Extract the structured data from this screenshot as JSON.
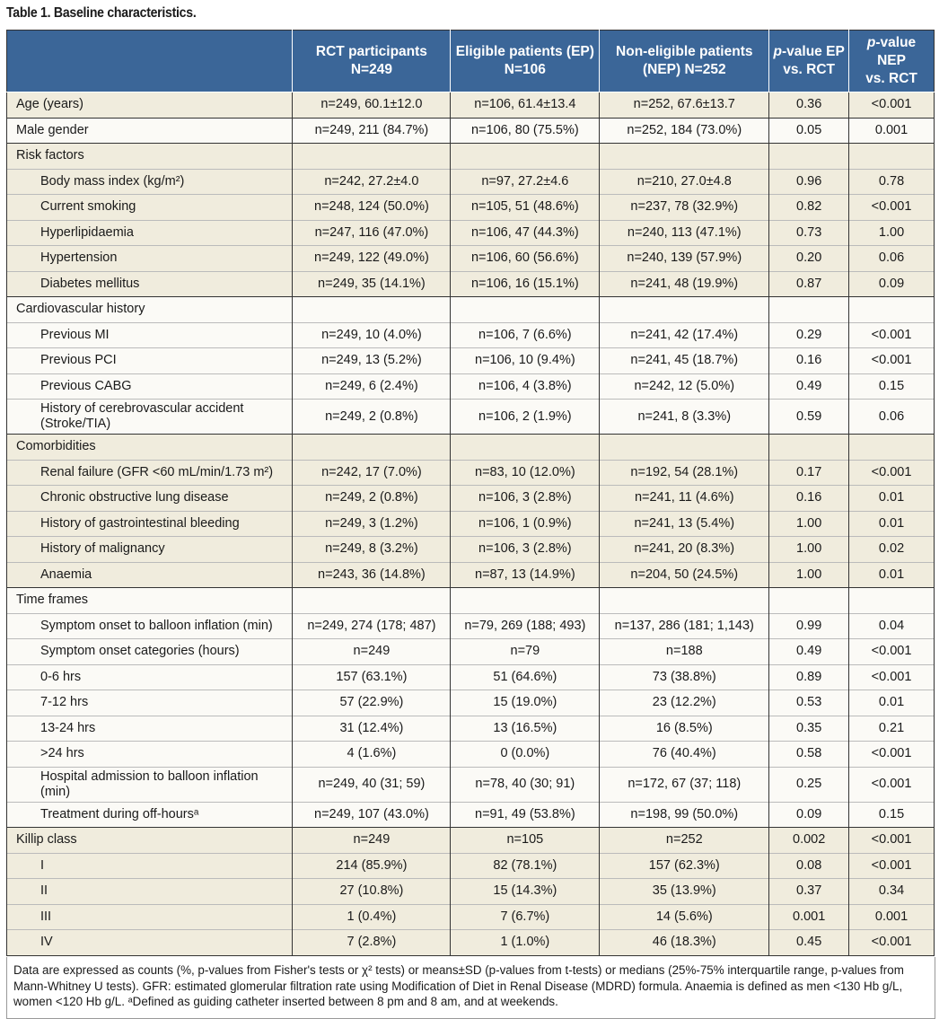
{
  "title": "Table 1. Baseline characteristics.",
  "headers": [
    {
      "l1": "RCT participants",
      "l2": "N=249"
    },
    {
      "l1": "Eligible patients (EP)",
      "l2": "N=106"
    },
    {
      "l1": "Non-eligible patients",
      "l2": "(NEP) N=252"
    },
    {
      "p": "p",
      "l1": "-value EP",
      "l2": "vs. RCT"
    },
    {
      "p": "p",
      "l1": "-value NEP",
      "l2": "vs. RCT"
    }
  ],
  "rows": [
    {
      "g": 0,
      "label": "Age (years)",
      "cells": [
        "n=249, 60.1±12.0",
        "n=106, 61.4±13.4",
        "n=252, 67.6±13.7",
        "0.36",
        "<0.001"
      ]
    },
    {
      "g": 1,
      "label": "Male gender",
      "cells": [
        "n=249, 211 (84.7%)",
        "n=106, 80 (75.5%)",
        "n=252, 184 (73.0%)",
        "0.05",
        "0.001"
      ]
    },
    {
      "g": 2,
      "label": "Risk factors",
      "cells": [
        "",
        "",
        "",
        "",
        ""
      ]
    },
    {
      "g": 2,
      "ind": true,
      "label": "Body mass index (kg/m²)",
      "cells": [
        "n=242, 27.2±4.0",
        "n=97, 27.2±4.6",
        "n=210, 27.0±4.8",
        "0.96",
        "0.78"
      ]
    },
    {
      "g": 2,
      "ind": true,
      "label": "Current smoking",
      "cells": [
        "n=248, 124 (50.0%)",
        "n=105, 51 (48.6%)",
        "n=237, 78 (32.9%)",
        "0.82",
        "<0.001"
      ]
    },
    {
      "g": 2,
      "ind": true,
      "label": "Hyperlipidaemia",
      "cells": [
        "n=247, 116 (47.0%)",
        "n=106, 47 (44.3%)",
        "n=240, 113 (47.1%)",
        "0.73",
        "1.00"
      ]
    },
    {
      "g": 2,
      "ind": true,
      "label": "Hypertension",
      "cells": [
        "n=249, 122 (49.0%)",
        "n=106, 60 (56.6%)",
        "n=240, 139 (57.9%)",
        "0.20",
        "0.06"
      ]
    },
    {
      "g": 2,
      "ind": true,
      "label": "Diabetes mellitus",
      "cells": [
        "n=249, 35 (14.1%)",
        "n=106, 16 (15.1%)",
        "n=241, 48 (19.9%)",
        "0.87",
        "0.09"
      ]
    },
    {
      "g": 3,
      "label": "Cardiovascular history",
      "cells": [
        "",
        "",
        "",
        "",
        ""
      ]
    },
    {
      "g": 3,
      "ind": true,
      "label": "Previous MI",
      "cells": [
        "n=249, 10 (4.0%)",
        "n=106, 7 (6.6%)",
        "n=241, 42 (17.4%)",
        "0.29",
        "<0.001"
      ]
    },
    {
      "g": 3,
      "ind": true,
      "label": "Previous PCI",
      "cells": [
        "n=249, 13 (5.2%)",
        "n=106, 10 (9.4%)",
        "n=241, 45 (18.7%)",
        "0.16",
        "<0.001"
      ]
    },
    {
      "g": 3,
      "ind": true,
      "label": "Previous CABG",
      "cells": [
        "n=249, 6 (2.4%)",
        "n=106, 4 (3.8%)",
        "n=242, 12 (5.0%)",
        "0.49",
        "0.15"
      ]
    },
    {
      "g": 3,
      "ind": true,
      "tall": true,
      "label": "History of cerebrovascular accident (Stroke/TIA)",
      "cells": [
        "n=249, 2 (0.8%)",
        "n=106, 2 (1.9%)",
        "n=241, 8 (3.3%)",
        "0.59",
        "0.06"
      ]
    },
    {
      "g": 4,
      "label": "Comorbidities",
      "cells": [
        "",
        "",
        "",
        "",
        ""
      ]
    },
    {
      "g": 4,
      "ind": true,
      "label": "Renal failure (GFR <60 mL/min/1.73 m²)",
      "cells": [
        "n=242, 17 (7.0%)",
        "n=83, 10 (12.0%)",
        "n=192, 54 (28.1%)",
        "0.17",
        "<0.001"
      ]
    },
    {
      "g": 4,
      "ind": true,
      "label": "Chronic obstructive lung disease",
      "cells": [
        "n=249, 2 (0.8%)",
        "n=106, 3 (2.8%)",
        "n=241, 11 (4.6%)",
        "0.16",
        "0.01"
      ]
    },
    {
      "g": 4,
      "ind": true,
      "label": "History of gastrointestinal bleeding",
      "cells": [
        "n=249, 3 (1.2%)",
        "n=106, 1 (0.9%)",
        "n=241, 13 (5.4%)",
        "1.00",
        "0.01"
      ]
    },
    {
      "g": 4,
      "ind": true,
      "label": "History of malignancy",
      "cells": [
        "n=249, 8 (3.2%)",
        "n=106, 3 (2.8%)",
        "n=241, 20 (8.3%)",
        "1.00",
        "0.02"
      ]
    },
    {
      "g": 4,
      "ind": true,
      "label": "Anaemia",
      "cells": [
        "n=243, 36 (14.8%)",
        "n=87, 13 (14.9%)",
        "n=204, 50 (24.5%)",
        "1.00",
        "0.01"
      ]
    },
    {
      "g": 5,
      "label": "Time frames",
      "cells": [
        "",
        "",
        "",
        "",
        ""
      ]
    },
    {
      "g": 5,
      "ind": true,
      "label": "Symptom onset to balloon inflation (min)",
      "cells": [
        "n=249, 274 (178; 487)",
        "n=79, 269 (188; 493)",
        "n=137, 286 (181; 1,143)",
        "0.99",
        "0.04"
      ]
    },
    {
      "g": 5,
      "ind": true,
      "label": "Symptom onset categories (hours)",
      "cells": [
        "n=249",
        "n=79",
        "n=188",
        "0.49",
        "<0.001"
      ]
    },
    {
      "g": 5,
      "ind": true,
      "label": "0-6 hrs",
      "cells": [
        "157 (63.1%)",
        "51 (64.6%)",
        "73 (38.8%)",
        "0.89",
        "<0.001"
      ]
    },
    {
      "g": 5,
      "ind": true,
      "label": "7-12 hrs",
      "cells": [
        "57 (22.9%)",
        "15 (19.0%)",
        "23 (12.2%)",
        "0.53",
        "0.01"
      ]
    },
    {
      "g": 5,
      "ind": true,
      "label": "13-24 hrs",
      "cells": [
        "31 (12.4%)",
        "13 (16.5%)",
        "16 (8.5%)",
        "0.35",
        "0.21"
      ]
    },
    {
      "g": 5,
      "ind": true,
      "label": ">24 hrs",
      "cells": [
        "4 (1.6%)",
        "0 (0.0%)",
        "76 (40.4%)",
        "0.58",
        "<0.001"
      ]
    },
    {
      "g": 5,
      "ind": true,
      "tall": true,
      "label": "Hospital admission to balloon inflation (min)",
      "cells": [
        "n=249, 40 (31; 59)",
        "n=78, 40 (30; 91)",
        "n=172, 67 (37; 118)",
        "0.25",
        "<0.001"
      ]
    },
    {
      "g": 5,
      "ind": true,
      "label": "Treatment during off-hoursᵃ",
      "cells": [
        "n=249, 107 (43.0%)",
        "n=91, 49 (53.8%)",
        "n=198, 99 (50.0%)",
        "0.09",
        "0.15"
      ]
    },
    {
      "g": 6,
      "label": "Killip class",
      "cells": [
        "n=249",
        "n=105",
        "n=252",
        "0.002",
        "<0.001"
      ]
    },
    {
      "g": 6,
      "ind": true,
      "label": "I",
      "cells": [
        "214 (85.9%)",
        "82 (78.1%)",
        "157 (62.3%)",
        "0.08",
        "<0.001"
      ]
    },
    {
      "g": 6,
      "ind": true,
      "label": "II",
      "cells": [
        "27 (10.8%)",
        "15 (14.3%)",
        "35 (13.9%)",
        "0.37",
        "0.34"
      ]
    },
    {
      "g": 6,
      "ind": true,
      "label": "III",
      "cells": [
        "1 (0.4%)",
        "7 (6.7%)",
        "14 (5.6%)",
        "0.001",
        "0.001"
      ]
    },
    {
      "g": 6,
      "ind": true,
      "label": "IV",
      "cells": [
        "7 (2.8%)",
        "1 (1.0%)",
        "46 (18.3%)",
        "0.45",
        "<0.001"
      ]
    }
  ],
  "footnote": "Data are expressed as counts (%, p-values from Fisher's tests or χ² tests) or means±SD (p-values from t-tests) or medians (25%-75% interquartile range, p-values from Mann-Whitney U tests). GFR: estimated glomerular filtration rate using Modification of Diet in Renal Disease (MDRD) formula. Anaemia is defined as men <130 Hb g/L, women <120 Hb g/L. ᵃDefined as guiding catheter inserted between 8 pm and 8 am, and at weekends."
}
